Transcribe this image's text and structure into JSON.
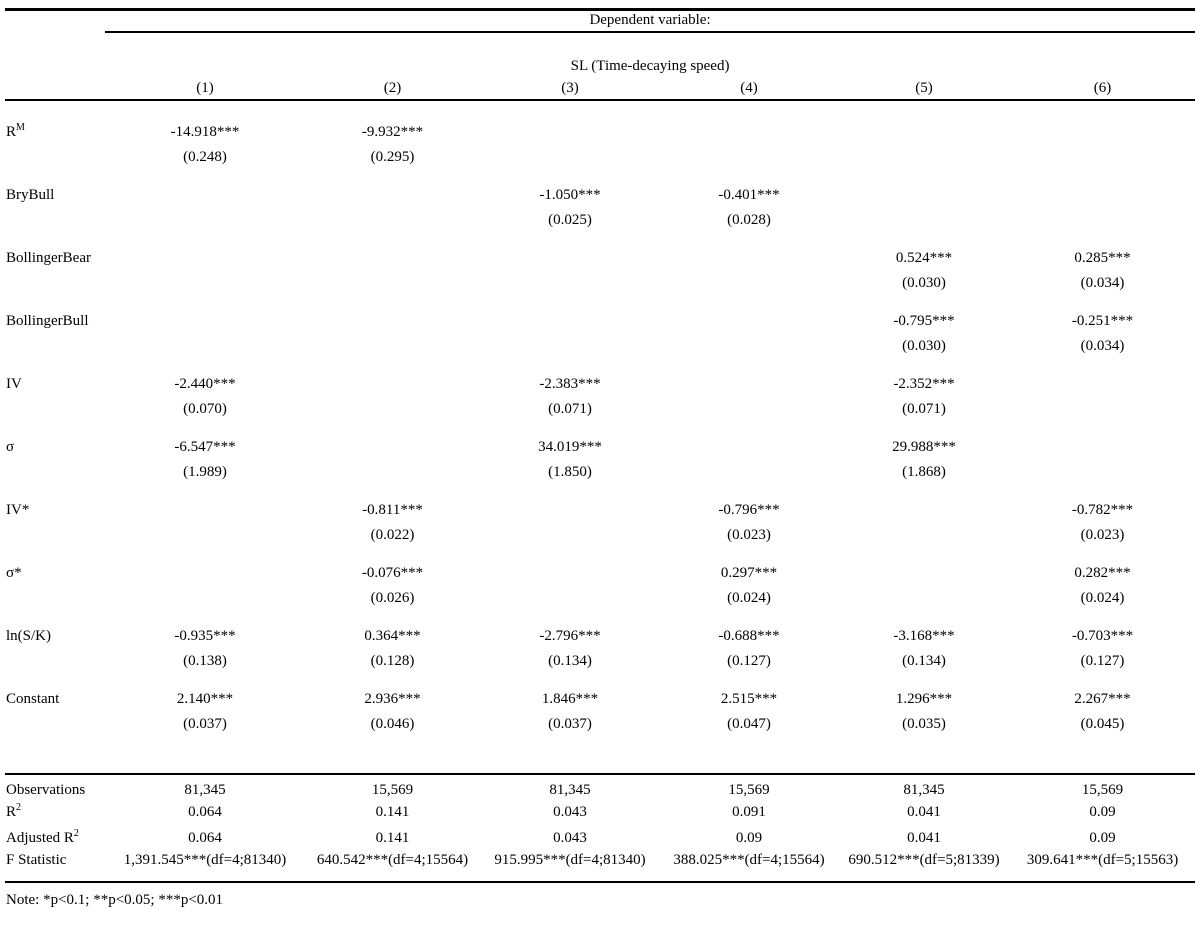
{
  "colors": {
    "background": "#ffffff",
    "text": "#000000",
    "rule": "#000000"
  },
  "table": {
    "dep_var_header": "Dependent variable:",
    "dep_var_label": "SL (Time-decaying speed)",
    "column_numbers": [
      "(1)",
      "(2)",
      "(3)",
      "(4)",
      "(5)",
      "(6)"
    ],
    "rows": [
      {
        "key": "rm",
        "label": "R",
        "label_sup": "M",
        "coefs": [
          "-14.918***",
          "-9.932***",
          "",
          "",
          "",
          ""
        ],
        "ses": [
          "(0.248)",
          "(0.295)",
          "",
          "",
          "",
          ""
        ]
      },
      {
        "key": "brybull",
        "label": "BryBull",
        "coefs": [
          "",
          "",
          "-1.050***",
          "-0.401***",
          "",
          ""
        ],
        "ses": [
          "",
          "",
          "(0.025)",
          "(0.028)",
          "",
          ""
        ]
      },
      {
        "key": "bollingerbear",
        "label": "BollingerBear",
        "coefs": [
          "",
          "",
          "",
          "",
          "0.524***",
          "0.285***"
        ],
        "ses": [
          "",
          "",
          "",
          "",
          "(0.030)",
          "(0.034)"
        ]
      },
      {
        "key": "bollingerbull",
        "label": "BollingerBull",
        "coefs": [
          "",
          "",
          "",
          "",
          "-0.795***",
          "-0.251***"
        ],
        "ses": [
          "",
          "",
          "",
          "",
          "(0.030)",
          "(0.034)"
        ]
      },
      {
        "key": "iv",
        "label": "IV",
        "coefs": [
          "-2.440***",
          "",
          "-2.383***",
          "",
          "-2.352***",
          ""
        ],
        "ses": [
          "(0.070)",
          "",
          "(0.071)",
          "",
          "(0.071)",
          ""
        ]
      },
      {
        "key": "sigma",
        "label": "σ",
        "coefs": [
          "-6.547***",
          "",
          "34.019***",
          "",
          "29.988***",
          ""
        ],
        "ses": [
          "(1.989)",
          "",
          "(1.850)",
          "",
          "(1.868)",
          ""
        ]
      },
      {
        "key": "iv-star",
        "label": "IV*",
        "coefs": [
          "",
          "-0.811***",
          "",
          "-0.796***",
          "",
          "-0.782***"
        ],
        "ses": [
          "",
          "(0.022)",
          "",
          "(0.023)",
          "",
          "(0.023)"
        ]
      },
      {
        "key": "sigma-star",
        "label": "σ*",
        "coefs": [
          "",
          "-0.076***",
          "",
          "0.297***",
          "",
          "0.282***"
        ],
        "ses": [
          "",
          "(0.026)",
          "",
          "(0.024)",
          "",
          "(0.024)"
        ]
      },
      {
        "key": "ln-s-k",
        "label": "ln(S/K)",
        "coefs": [
          "-0.935***",
          "0.364***",
          "-2.796***",
          "-0.688***",
          "-3.168***",
          "-0.703***"
        ],
        "ses": [
          "(0.138)",
          "(0.128)",
          "(0.134)",
          "(0.127)",
          "(0.134)",
          "(0.127)"
        ]
      },
      {
        "key": "constant",
        "label": "Constant",
        "coefs": [
          "2.140***",
          "2.936***",
          "1.846***",
          "2.515***",
          "1.296***",
          "2.267***"
        ],
        "ses": [
          "(0.037)",
          "(0.046)",
          "(0.037)",
          "(0.047)",
          "(0.035)",
          "(0.045)"
        ]
      }
    ],
    "summary": [
      {
        "key": "observations",
        "label": "Observations",
        "values": [
          "81,345",
          "15,569",
          "81,345",
          "15,569",
          "81,345",
          "15,569"
        ]
      },
      {
        "key": "r2",
        "label": "R",
        "label_sup": "2",
        "values": [
          "0.064",
          "0.141",
          "0.043",
          "0.091",
          "0.041",
          "0.09"
        ]
      },
      {
        "key": "adjusted-r2",
        "label": "Adjusted R",
        "label_sup": "2",
        "values": [
          "0.064",
          "0.141",
          "0.043",
          "0.09",
          "0.041",
          "0.09"
        ]
      },
      {
        "key": "f-statistic",
        "label": "F Statistic",
        "values": [
          "1,391.545***(df=4;81340)",
          "640.542***(df=4;15564)",
          "915.995***(df=4;81340)",
          "388.025***(df=4;15564)",
          "690.512***(df=5;81339)",
          "309.641***(df=5;15563)"
        ]
      }
    ],
    "note": "Note: *p<0.1; **p<0.05; ***p<0.01"
  }
}
